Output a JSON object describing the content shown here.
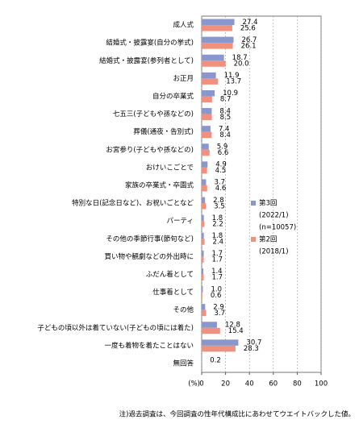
{
  "chart_data": {
    "type": "hbar",
    "categories": [
      "成人式",
      "結婚式・披露宴(自分の挙式)",
      "結婚式・披露宴(参列者として)",
      "お正月",
      "自分の卒業式",
      "七五三(子どもや孫などの)",
      "葬儀(通夜・告別式)",
      "お宮参り(子どもや孫などの)",
      "おけいこごとで",
      "家族の卒業式・卒園式",
      "特別な日(記念日など)、お祝いごとなど",
      "パーティ",
      "その他の季節行事(節句など)",
      "買い物や観劇などの外出時に",
      "ふだん着として",
      "仕事着として",
      "その他",
      "子どもの頃以外は着ていない(子どもの頃には着た)",
      "一度も着物を着たことはない",
      "無回答"
    ],
    "series": [
      {
        "name": "第3回",
        "notes": [
          "(2022/1)",
          "(n=10057)"
        ],
        "color": "#8a97cc",
        "values": [
          27.4,
          26.7,
          18.7,
          11.9,
          10.9,
          8.4,
          7.4,
          5.9,
          4.9,
          3.7,
          2.8,
          1.8,
          1.8,
          1.7,
          1.4,
          1.0,
          2.9,
          12.8,
          30.7,
          0.2
        ],
        "value_labels": [
          "27.4",
          "26.7",
          "18.7",
          "11.9",
          "10.9",
          "8.4",
          "7.4",
          "5.9",
          "4.9",
          "3.7",
          "2.8",
          "1.8",
          "1.8",
          "1.7",
          "1.4",
          "1.0",
          "2.9",
          "12.8",
          "30.7",
          "0.2"
        ]
      },
      {
        "name": "第2回",
        "notes": [
          "(2018/1)"
        ],
        "color": "#f0907e",
        "values": [
          25.6,
          26.1,
          20.0,
          13.7,
          8.7,
          8.5,
          8.4,
          6.6,
          4.5,
          4.6,
          3.5,
          2.2,
          2.4,
          1.7,
          1.7,
          0.6,
          3.7,
          15.4,
          28.3,
          null
        ],
        "value_labels": [
          "25.6",
          "26.1",
          "20.0",
          "13.7",
          "8.7",
          "8.5",
          "8.4",
          "6.6",
          "4.5",
          "4.6",
          "3.5",
          "2.2",
          "2.4",
          "1.7",
          "1.7",
          "0.6",
          "3.7",
          "15.4",
          "28.3",
          null
        ]
      }
    ],
    "xlim": [
      0,
      100
    ],
    "xticks": [
      0,
      20,
      40,
      60,
      80,
      100
    ],
    "xlabel": "(%)",
    "grid": true,
    "footnote": "注)過去調査は、今回調査の性年代構成比にあわせてウエイトバックした値。"
  }
}
